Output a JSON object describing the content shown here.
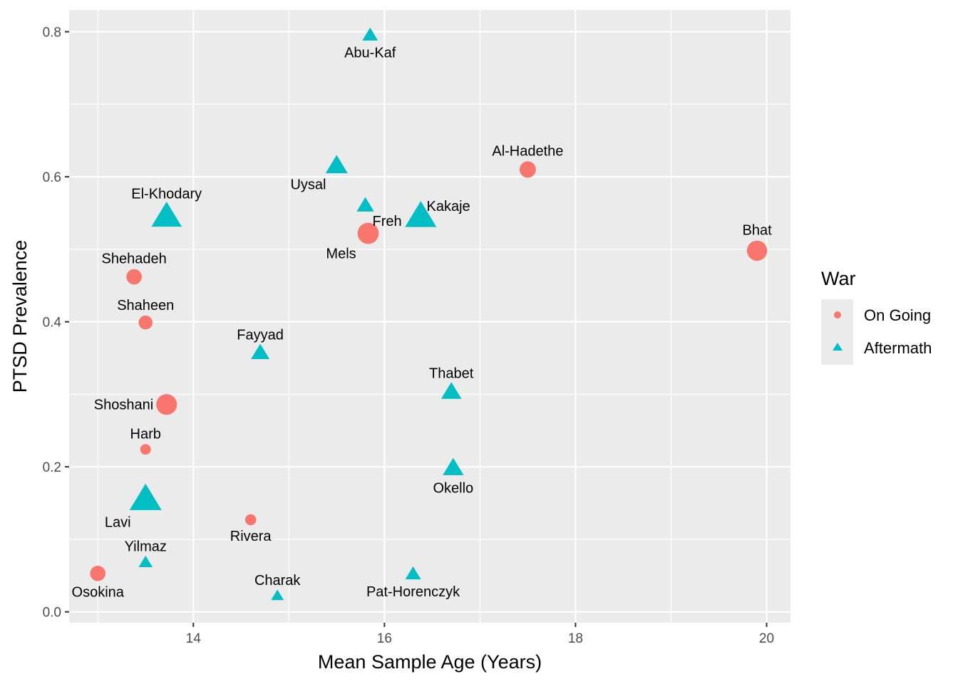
{
  "chart_data": {
    "type": "scatter",
    "title": "",
    "xlabel": "Mean Sample Age (Years)",
    "ylabel": "PTSD Prevalence",
    "xlim": [
      12.7,
      20.25
    ],
    "ylim": [
      -0.015,
      0.83
    ],
    "x_ticks": [
      14,
      16,
      18,
      20
    ],
    "x_tick_labels": [
      "14",
      "16",
      "18",
      "20"
    ],
    "y_ticks": [
      0.0,
      0.2,
      0.4,
      0.6,
      0.8
    ],
    "y_tick_labels": [
      "0.0",
      "0.2",
      "0.4",
      "0.6",
      "0.8"
    ],
    "grid": true,
    "legend": {
      "title": "War",
      "position": "right",
      "entries": [
        {
          "label": "On Going",
          "shape": "circle",
          "color": "#F8766D"
        },
        {
          "label": "Aftermath",
          "shape": "triangle",
          "color": "#00BFC4"
        }
      ]
    },
    "colors": {
      "On Going": "#F8766D",
      "Aftermath": "#00BFC4",
      "panel": "#EBEBEB",
      "grid": "#FFFFFF"
    },
    "points": [
      {
        "label": "Abu-Kaf",
        "x": 15.85,
        "y": 0.795,
        "group": "Aftermath",
        "size": 1.5,
        "label_pos": "below"
      },
      {
        "label": "Al-Hadethe",
        "x": 17.5,
        "y": 0.61,
        "group": "On Going",
        "size": 2.2,
        "label_pos": "above"
      },
      {
        "label": "Uysal",
        "x": 15.5,
        "y": 0.615,
        "group": "Aftermath",
        "size": 2.6,
        "label_pos": "below-left"
      },
      {
        "label": "Freh",
        "x": 15.8,
        "y": 0.56,
        "group": "Aftermath",
        "size": 1.8,
        "label_pos": "below-right"
      },
      {
        "label": "Kakaje",
        "x": 16.38,
        "y": 0.545,
        "group": "Aftermath",
        "size": 4.2,
        "label_pos": "right"
      },
      {
        "label": "Mels",
        "x": 15.83,
        "y": 0.522,
        "group": "On Going",
        "size": 3.2,
        "label_pos": "below-left"
      },
      {
        "label": "El-Khodary",
        "x": 13.72,
        "y": 0.545,
        "group": "Aftermath",
        "size": 4.0,
        "label_pos": "above"
      },
      {
        "label": "Bhat",
        "x": 19.9,
        "y": 0.498,
        "group": "On Going",
        "size": 3.0,
        "label_pos": "above"
      },
      {
        "label": "Shehadeh",
        "x": 13.38,
        "y": 0.462,
        "group": "On Going",
        "size": 2.0,
        "label_pos": "above"
      },
      {
        "label": "Shaheen",
        "x": 13.5,
        "y": 0.399,
        "group": "On Going",
        "size": 1.7,
        "label_pos": "above"
      },
      {
        "label": "Fayyad",
        "x": 14.7,
        "y": 0.357,
        "group": "Aftermath",
        "size": 2.0,
        "label_pos": "above"
      },
      {
        "label": "Thabet",
        "x": 16.7,
        "y": 0.303,
        "group": "Aftermath",
        "size": 2.3,
        "label_pos": "above"
      },
      {
        "label": "Shoshani",
        "x": 13.72,
        "y": 0.286,
        "group": "On Going",
        "size": 3.1,
        "label_pos": "left"
      },
      {
        "label": "Harb",
        "x": 13.5,
        "y": 0.224,
        "group": "On Going",
        "size": 1.0,
        "label_pos": "above"
      },
      {
        "label": "Okello",
        "x": 16.72,
        "y": 0.198,
        "group": "Aftermath",
        "size": 2.4,
        "label_pos": "below"
      },
      {
        "label": "Lavi",
        "x": 13.5,
        "y": 0.155,
        "group": "Aftermath",
        "size": 4.3,
        "label_pos": "below-left"
      },
      {
        "label": "Rivera",
        "x": 14.6,
        "y": 0.127,
        "group": "On Going",
        "size": 1.1,
        "label_pos": "below"
      },
      {
        "label": "Yilmaz",
        "x": 13.5,
        "y": 0.068,
        "group": "Aftermath",
        "size": 1.2,
        "label_pos": "above"
      },
      {
        "label": "Osokina",
        "x": 13.0,
        "y": 0.053,
        "group": "On Going",
        "size": 2.0,
        "label_pos": "below"
      },
      {
        "label": "Charak",
        "x": 14.88,
        "y": 0.022,
        "group": "Aftermath",
        "size": 1.0,
        "label_pos": "above"
      },
      {
        "label": "Pat-Horenczyk",
        "x": 16.3,
        "y": 0.052,
        "group": "Aftermath",
        "size": 1.5,
        "label_pos": "below"
      }
    ]
  }
}
